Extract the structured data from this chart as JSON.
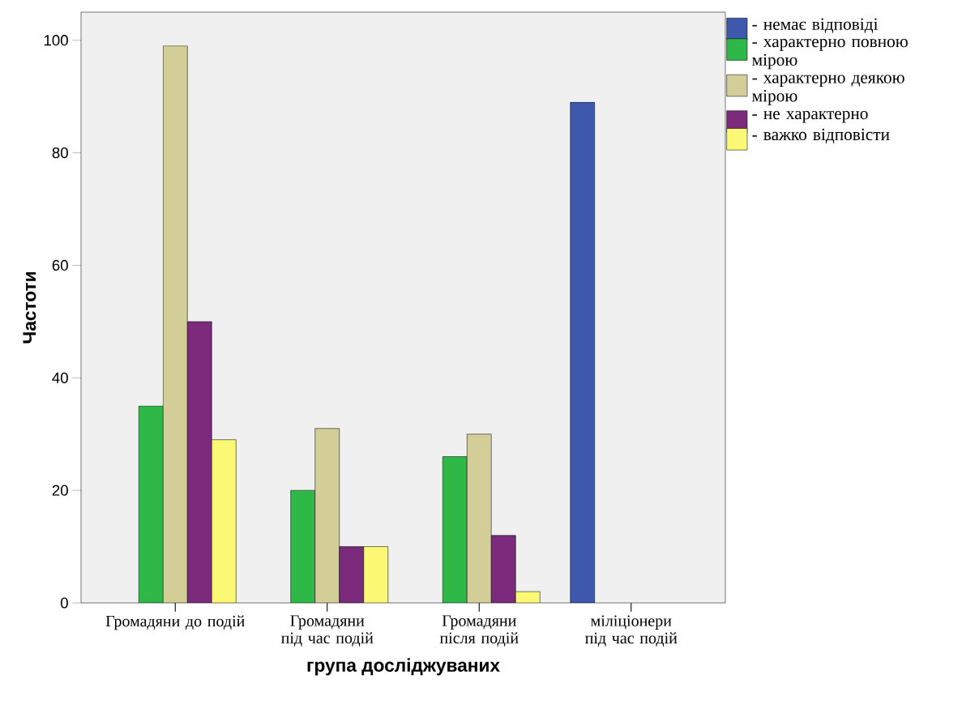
{
  "chart_data": {
    "type": "bar",
    "categories": [
      "Громадяни до подій",
      "Громадяни під час подій",
      "Громадяни після подій",
      "міліціонери під час подій"
    ],
    "xlabel": "група досліджуваних",
    "ylabel": "Частоти",
    "ylim": [
      0,
      105
    ],
    "yticks": [
      0,
      20,
      40,
      60,
      80,
      100
    ],
    "legend": "right",
    "series": [
      {
        "name": "- немає відповіді",
        "color": "#3e58ac",
        "values": [
          null,
          null,
          null,
          89
        ]
      },
      {
        "name": "- характерно повною мірою",
        "color": "#2eb848",
        "values": [
          35,
          20,
          26,
          null
        ]
      },
      {
        "name": "- характерно деякою мірою",
        "color": "#d3ce97",
        "values": [
          99,
          31,
          30,
          null
        ]
      },
      {
        "name": "- не характерно",
        "color": "#7b2a7c",
        "values": [
          50,
          10,
          12,
          null
        ]
      },
      {
        "name": "- важко відповісти",
        "color": "#fbf873",
        "values": [
          29,
          10,
          2,
          null
        ]
      }
    ]
  }
}
